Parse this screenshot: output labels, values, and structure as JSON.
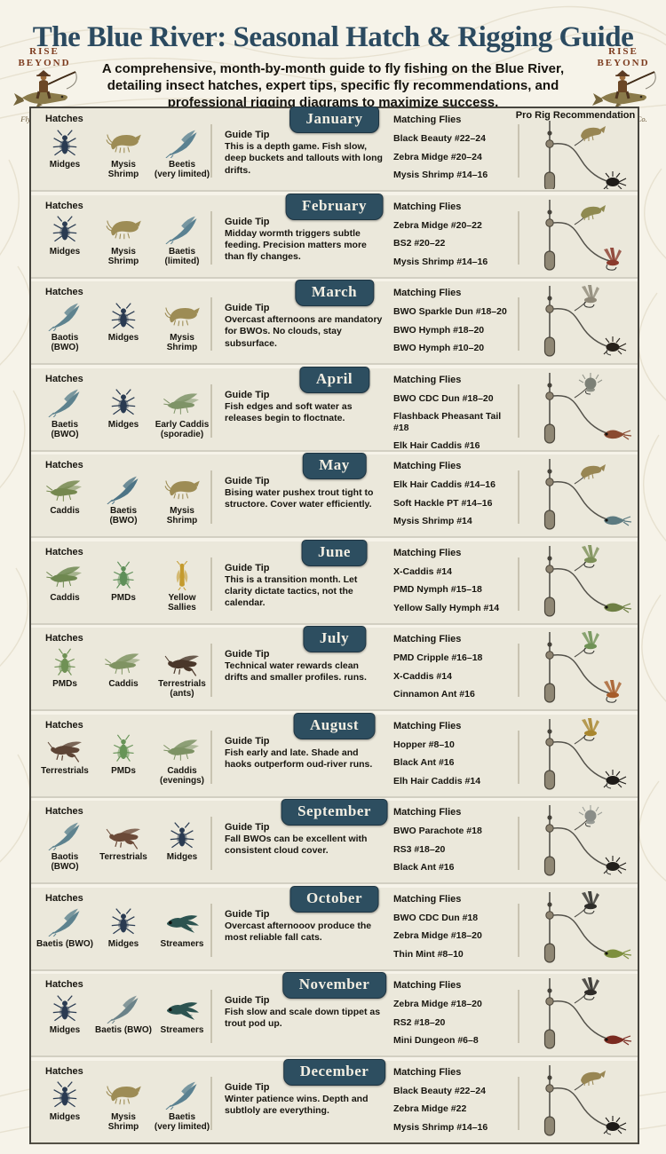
{
  "header": {
    "title": "The Blue River: Seasonal Hatch & Rigging Guide",
    "subtitle": "A comprehensive, month-by-month guide to fly fishing on the Blue River, detailing insect hatches, expert tips, specific fly recommendations, and professional rigging diagrams to maximize success."
  },
  "logo": {
    "line1": "RISE",
    "line2": "BEYOND",
    "company": "Fly Fishing Co."
  },
  "table": {
    "hatches_label": "Hatches",
    "guide_tip_label": "Guide Tip",
    "matching_flies_label": "Matching Flies",
    "pro_rig_label": "Pro Rig Recommendation"
  },
  "colors": {
    "title": "#2b4a60",
    "banner": "#2d4e60",
    "row_bg": "#ebe8db",
    "page_bg": "#f6f3e9",
    "border": "#47453e"
  },
  "months": [
    {
      "name": "January",
      "hatches": [
        {
          "label": "Midges",
          "icon": "midge",
          "color": "#2a3b52"
        },
        {
          "label": "Mysis\nShrimp",
          "icon": "shrimp",
          "color": "#9d8c55"
        },
        {
          "label": "Beetis\n(very limited)",
          "icon": "mayfly",
          "color": "#5a8191"
        }
      ],
      "tip": "This is a depth game. Fish slow, deep buckets and tallouts with long drifts.",
      "flies": [
        "Black Beauty #22–24",
        "Zebra Midge #20–24",
        "Mysis Shrimp #14–16"
      ],
      "rig": {
        "upper_fly": {
          "shape": "shrimp",
          "color": "#988653"
        },
        "lower_fly": {
          "shape": "nymph",
          "color": "#1e1b18"
        }
      }
    },
    {
      "name": "February",
      "hatches": [
        {
          "label": "Midges",
          "icon": "midge",
          "color": "#2a3b52"
        },
        {
          "label": "Mysis\nShrimp",
          "icon": "shrimp",
          "color": "#9d8c55"
        },
        {
          "label": "Baetis\n(limited)",
          "icon": "mayfly",
          "color": "#5a8191"
        }
      ],
      "tip": "Midday wormth triggers subtle feeding. Precision matters more than fly changes.",
      "flies": [
        "Zebra Midge #20–22",
        "BS2 #20–22",
        "Mysis Shrimp #14–16"
      ],
      "rig": {
        "upper_fly": {
          "shape": "shrimp",
          "color": "#8f8a50"
        },
        "lower_fly": {
          "shape": "wing",
          "color": "#8a3a2c"
        }
      }
    },
    {
      "name": "March",
      "hatches": [
        {
          "label": "Baotis\n(BWO)",
          "icon": "mayfly",
          "color": "#5d828e"
        },
        {
          "label": "Midges",
          "icon": "midge",
          "color": "#2a3b52"
        },
        {
          "label": "Mysis\nShrimp",
          "icon": "shrimp",
          "color": "#9d8c55"
        }
      ],
      "tip": "Overcast afternoons are mandatory for BWOs. No clouds, stay subsurface.",
      "flies": [
        "BWO Sparkle Dun #18–20",
        "BWO Hymph #18–20",
        "BWO Hymph #10–20"
      ],
      "rig": {
        "upper_fly": {
          "shape": "wing",
          "color": "#8e8878"
        },
        "lower_fly": {
          "shape": "nymph",
          "color": "#27211b"
        }
      }
    },
    {
      "name": "April",
      "hatches": [
        {
          "label": "Baetis\n(BWO)",
          "icon": "mayfly",
          "color": "#5d828e"
        },
        {
          "label": "Midges",
          "icon": "midge",
          "color": "#2a3b52"
        },
        {
          "label": "Early Caddis\n(sporadie)",
          "icon": "caddis",
          "color": "#7e9367"
        }
      ],
      "tip": "Fish edges and soft water as releases begin to floctnate.",
      "flies": [
        "BWO CDC Dun #18–20",
        "Flashback Pheasant Tail #18",
        "Elk Hair Caddis #16"
      ],
      "rig": {
        "upper_fly": {
          "shape": "blob",
          "color": "#7c8076"
        },
        "lower_fly": {
          "shape": "streamer",
          "color": "#8a4a30"
        }
      }
    },
    {
      "name": "May",
      "hatches": [
        {
          "label": "Caddis",
          "icon": "caddis",
          "color": "#75884f"
        },
        {
          "label": "Baetis\n(BWO)",
          "icon": "mayfly",
          "color": "#4d7486"
        },
        {
          "label": "Mysis\nShrimp",
          "icon": "shrimp",
          "color": "#9d8c55"
        }
      ],
      "tip": "Bising water pushex trout tight to structore. Cover water efficiently.",
      "flies": [
        "Elk Hair Caddis #14–16",
        "Soft Hackle PT #14–16",
        "Mysis Shrimp #14"
      ],
      "rig": {
        "upper_fly": {
          "shape": "shrimp",
          "color": "#988653"
        },
        "lower_fly": {
          "shape": "streamer",
          "color": "#5c7a80"
        }
      }
    },
    {
      "name": "June",
      "hatches": [
        {
          "label": "Caddis",
          "icon": "caddis",
          "color": "#6f8851"
        },
        {
          "label": "PMDs",
          "icon": "pmd",
          "color": "#5f8f59"
        },
        {
          "label": "Yellow\nSallies",
          "icon": "sally",
          "color": "#c49b2e"
        }
      ],
      "tip": "This is a transition month. Let clarity dictate tactics, not the calendar.",
      "flies": [
        "X-Caddis #14",
        "PMD Nymph #15–18",
        "Yellow Sally Hymph #14"
      ],
      "rig": {
        "upper_fly": {
          "shape": "wing",
          "color": "#7c8f57"
        },
        "lower_fly": {
          "shape": "streamer",
          "color": "#6e7f44"
        }
      }
    },
    {
      "name": "July",
      "hatches": [
        {
          "label": "PMDs",
          "icon": "pmd",
          "color": "#6f9155"
        },
        {
          "label": "Caddis",
          "icon": "caddis",
          "color": "#7f9362"
        },
        {
          "label": "Terrestrials\n(ants)",
          "icon": "hopper",
          "color": "#4a372a"
        }
      ],
      "tip": "Technical water rewards clean drifts and smaller profiles. runs.",
      "flies": [
        "PMD Cripple #16–18",
        "X-Caddis #14",
        "Cinnamon Ant #16"
      ],
      "rig": {
        "upper_fly": {
          "shape": "wing",
          "color": "#6f9155"
        },
        "lower_fly": {
          "shape": "wing",
          "color": "#a65c2a"
        }
      }
    },
    {
      "name": "August",
      "hatches": [
        {
          "label": "Terrestrials",
          "icon": "hopper",
          "color": "#5d4435"
        },
        {
          "label": "PMDs",
          "icon": "pmd",
          "color": "#679458"
        },
        {
          "label": "Caddis\n(evenings)",
          "icon": "caddis",
          "color": "#7d9264"
        }
      ],
      "tip": "Fish early and late. Shade and haoks outperform oud-river runs.",
      "flies": [
        "Hopper #8–10",
        "Black Ant #16",
        "Elh Hair Caddis #14"
      ],
      "rig": {
        "upper_fly": {
          "shape": "wing",
          "color": "#a8862e"
        },
        "lower_fly": {
          "shape": "nymph",
          "color": "#1e1b18"
        }
      }
    },
    {
      "name": "September",
      "hatches": [
        {
          "label": "Baotis (BWO)",
          "icon": "mayfly",
          "color": "#5d828e"
        },
        {
          "label": "Terrestrials",
          "icon": "hopper",
          "color": "#6b4a38"
        },
        {
          "label": "Midges",
          "icon": "midge",
          "color": "#2a3b52"
        }
      ],
      "tip": "Fall BWOs can be excellent with consistent cloud cover.",
      "flies": [
        "BWO Parachote #18",
        "RS3 #18–20",
        "Black Ant #16"
      ],
      "rig": {
        "upper_fly": {
          "shape": "blob",
          "color": "#8a8d88"
        },
        "lower_fly": {
          "shape": "nymph",
          "color": "#23201c"
        }
      }
    },
    {
      "name": "October",
      "hatches": [
        {
          "label": "Baetis (BWO)",
          "icon": "mayfly",
          "color": "#5d828e"
        },
        {
          "label": "Midges",
          "icon": "midge",
          "color": "#2a3b52"
        },
        {
          "label": "Streamers",
          "icon": "streamer",
          "color": "#2c5350"
        }
      ],
      "tip": "Overcast afternooov produce the most reliable fall cats.",
      "flies": [
        "BWO CDC Dun #18",
        "Zebra Midge #18–20",
        "Thin Mint #8–10"
      ],
      "rig": {
        "upper_fly": {
          "shape": "wing",
          "color": "#2e2d2a"
        },
        "lower_fly": {
          "shape": "streamer",
          "color": "#7d8f3e"
        }
      }
    },
    {
      "name": "November",
      "hatches": [
        {
          "label": "Midges",
          "icon": "midge",
          "color": "#2a3b52"
        },
        {
          "label": "Baetis (BWO)",
          "icon": "mayfly",
          "color": "#6b8389"
        },
        {
          "label": "Streamers",
          "icon": "streamer",
          "color": "#2c5350"
        }
      ],
      "tip": "Fish slow and scale down tippet as trout pod up.",
      "flies": [
        "Zebra Midge #18–20",
        "RS2 #18–20",
        "Mini Dungeon #6–8"
      ],
      "rig": {
        "upper_fly": {
          "shape": "wing",
          "color": "#2e2b28"
        },
        "lower_fly": {
          "shape": "streamer",
          "color": "#7a2a20"
        }
      }
    },
    {
      "name": "December",
      "hatches": [
        {
          "label": "Midges",
          "icon": "midge",
          "color": "#2a3b52"
        },
        {
          "label": "Mysis\nShrimp",
          "icon": "shrimp",
          "color": "#9d8c55"
        },
        {
          "label": "Baetis\n(very limited)",
          "icon": "mayfly",
          "color": "#5a8191"
        }
      ],
      "tip": "Winter patience wins. Depth and subtloly are everything.",
      "flies": [
        "Black Beauty #22–24",
        "Zebra Midge #22",
        "Mysis Shrimp #14–16"
      ],
      "rig": {
        "upper_fly": {
          "shape": "shrimp",
          "color": "#988653"
        },
        "lower_fly": {
          "shape": "nymph",
          "color": "#1e1b18"
        }
      }
    }
  ]
}
